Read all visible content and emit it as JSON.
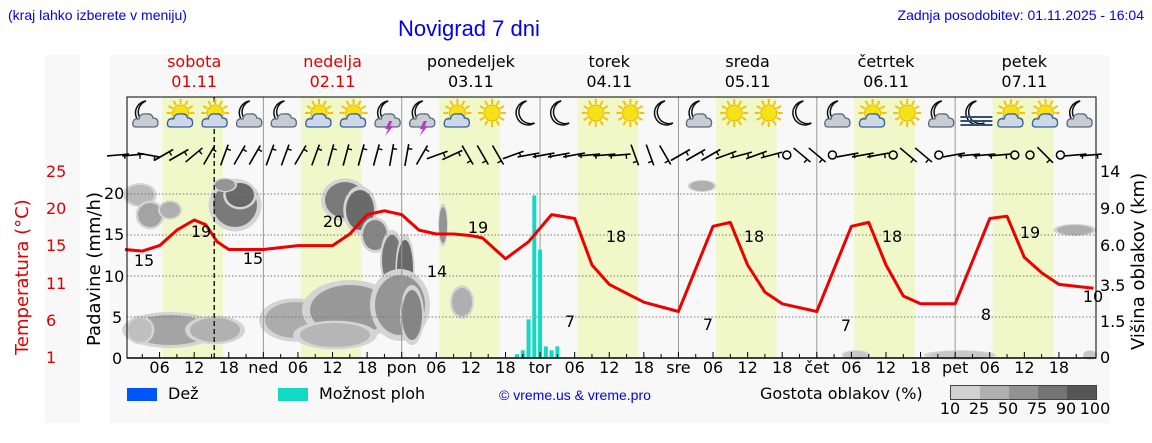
{
  "header": {
    "region_hint": "(kraj lahko izberete v meniju)",
    "title": "Novigrad 7 dni",
    "last_update": "Zadnja posodobitev: 01.11.2025 - 16:04"
  },
  "days": [
    {
      "name": "sobota",
      "date": "01.11",
      "color": "red",
      "short": ""
    },
    {
      "name": "nedelja",
      "date": "02.11",
      "color": "red",
      "short": "ned"
    },
    {
      "name": "ponedeljek",
      "date": "03.11",
      "color": "black",
      "short": "pon"
    },
    {
      "name": "torek",
      "date": "04.11",
      "color": "black",
      "short": "tor"
    },
    {
      "name": "sreda",
      "date": "05.11",
      "color": "black",
      "short": "sre"
    },
    {
      "name": "četrtek",
      "date": "06.11",
      "color": "black",
      "short": "čet"
    },
    {
      "name": "petek",
      "date": "07.11",
      "color": "black",
      "short": "pet"
    }
  ],
  "axes": {
    "left_outer_label": "Temperatura (°C)",
    "left_outer_ticks": [
      "25",
      "20",
      "15",
      "11",
      "6",
      "1"
    ],
    "left_inner_label": "Padavine (mm/h)",
    "left_inner_ticks": [
      "20",
      "15",
      "10",
      "5",
      "0"
    ],
    "right_label": "Višina oblakov (km)",
    "right_ticks": [
      "14",
      "9.0",
      "6.0",
      "3.5",
      "1.5",
      "0"
    ],
    "hour_ticks": [
      "06",
      "12",
      "18"
    ]
  },
  "legend": {
    "rain_label": "Dež",
    "rain_color": "#0055ff",
    "showers_label": "Možnost ploh",
    "showers_color": "#11d9c4",
    "copyright": "© vreme.us & vreme.pro",
    "cloud_density_label": "Gostota oblakov (%)",
    "cloud_density_ticks": [
      "10",
      "25",
      "50",
      "75",
      "90",
      "100"
    ],
    "cloud_density_colors": [
      "#d0d0d0",
      "#b0b0b0",
      "#929292",
      "#747474",
      "#565656"
    ]
  },
  "icons": [
    "moon-cloud-icon",
    "sun-cloud-icon",
    "sun-cloud-icon",
    "moon-cloud-icon",
    "moon-cloud-icon",
    "sun-cloud-icon",
    "sun-cloud-icon",
    "moon-thunder-icon",
    "moon-thunder-icon",
    "sun-cloud-icon",
    "sun-icon",
    "moon-icon",
    "moon-icon",
    "sun-icon",
    "sun-icon",
    "moon-icon",
    "moon-cloud-icon",
    "sun-icon",
    "sun-icon",
    "moon-icon",
    "moon-cloud-icon",
    "sun-cloud-icon",
    "sun-icon",
    "moon-cloud-icon",
    "moon-fog-icon",
    "sun-cloud-icon",
    "sun-cloud-icon",
    "moon-cloud-icon"
  ],
  "colors": {
    "temperature_line": "#ee0000",
    "daylight_band": "#f0f7c8",
    "plot_bg": "#f8f8f8",
    "text_blue": "#0000ee"
  },
  "chart_data": {
    "type": "line",
    "title": "Novigrad 7 dni",
    "xlabel": "",
    "ylabel": "Temperatura (°C)",
    "ylim": [
      1,
      25
    ],
    "x_range_hours": [
      0,
      168
    ],
    "current_time_marker_hour": 16,
    "series": [
      {
        "name": "Temperatura (°C)",
        "x_hours": [
          0,
          3,
          6,
          9,
          12,
          14,
          16,
          18,
          21,
          24,
          30,
          36,
          39,
          42,
          45,
          48,
          51,
          54,
          57,
          60,
          62,
          66,
          70,
          74,
          78,
          81,
          84,
          90,
          96,
          102,
          105,
          108,
          111,
          114,
          120,
          126,
          129,
          132,
          135,
          138,
          144,
          150,
          153,
          156,
          159,
          162,
          168
        ],
        "values": [
          15,
          14.8,
          15.5,
          17.5,
          18.8,
          18.2,
          16,
          15,
          15,
          15,
          15.5,
          15.5,
          17,
          19.5,
          20,
          19.5,
          17.5,
          17,
          17,
          16.8,
          16.5,
          13.8,
          16,
          19.5,
          19,
          13,
          10.5,
          8.2,
          7,
          18,
          18.5,
          13,
          9.5,
          8,
          7,
          18,
          18.5,
          13,
          9,
          8,
          8,
          19,
          19.3,
          14,
          12,
          10.5,
          10
        ]
      }
    ],
    "labels": [
      {
        "x_hour": 1,
        "text": "15"
      },
      {
        "x_hour": 13,
        "text": "19"
      },
      {
        "x_hour": 22,
        "text": "15"
      },
      {
        "x_hour": 48,
        "text": "20"
      },
      {
        "x_hour": 74,
        "text": "14"
      },
      {
        "x_hour": 84,
        "text": "19"
      },
      {
        "x_hour": 101,
        "text": "7"
      },
      {
        "x_hour": 108,
        "text": "18"
      },
      {
        "x_hour": 125,
        "text": "7"
      },
      {
        "x_hour": 132,
        "text": "18"
      },
      {
        "x_hour": 149,
        "text": "7"
      },
      {
        "x_hour": 156,
        "text": "18"
      },
      {
        "x_hour": 149.5,
        "text": "8"
      },
      {
        "x_hour": 156,
        "text": "19"
      },
      {
        "x_hour": 167,
        "text": "10"
      }
    ],
    "showers_bars": {
      "name": "Možnost ploh (mm/h)",
      "x_hours": [
        68,
        69,
        70,
        71,
        72,
        73,
        74,
        75
      ],
      "values": [
        0.5,
        1,
        5,
        21,
        14,
        1.5,
        1,
        1.5
      ]
    },
    "right_axis": {
      "label": "Višina oblakov (km)",
      "ticks": [
        "0",
        "1.5",
        "3.5",
        "6.0",
        "9.0",
        "14"
      ]
    },
    "inner_left_axis": {
      "label": "Padavine (mm/h)",
      "ticks": [
        "0",
        "5",
        "10",
        "15",
        "20"
      ]
    },
    "daylight_hours": [
      6.5,
      17
    ],
    "grid": true
  }
}
